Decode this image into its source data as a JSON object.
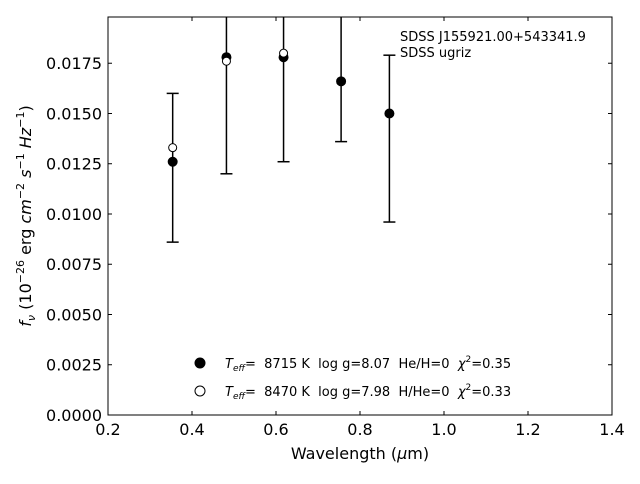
{
  "chart_data": {
    "type": "scatter",
    "xlabel": "Wavelength (μm)",
    "ylabel": "f_ν (10^-26 erg cm^-2 s^-1 Hz^-1)",
    "xlim": [
      0.2,
      1.4
    ],
    "ylim": [
      0.0,
      0.0198
    ],
    "xticks": [
      "0.2",
      "0.4",
      "0.6",
      "0.8",
      "1.0",
      "1.2",
      "1.4"
    ],
    "yticks": [
      "0.0000",
      "0.0025",
      "0.0050",
      "0.0075",
      "0.0100",
      "0.0125",
      "0.0150",
      "0.0175"
    ],
    "annotation": [
      "SDSS J155921.00+543341.9",
      "SDSS ugriz"
    ],
    "observed": {
      "x": [
        0.354,
        0.482,
        0.618,
        0.755,
        0.87
      ],
      "y": [
        0.0126,
        0.0178,
        0.0178,
        0.0166,
        0.015
      ],
      "yerr_low": [
        0.0086,
        0.012,
        0.0126,
        0.0136,
        0.0096
      ],
      "yerr_high": [
        0.016,
        0.02,
        0.02,
        0.02,
        0.0179
      ]
    },
    "series": [
      {
        "marker": "filled-circle",
        "x": [
          0.354,
          0.482,
          0.618,
          0.755,
          0.87
        ],
        "y": [
          0.0126,
          0.0178,
          0.0178,
          0.0166,
          0.015
        ]
      },
      {
        "marker": "open-circle",
        "x": [
          0.354,
          0.482,
          0.618,
          0.755,
          0.87
        ],
        "y": [
          0.0133,
          0.0176,
          0.018,
          0.0166,
          0.015
        ]
      }
    ],
    "legend": {
      "placement": "lower-center",
      "entries": [
        {
          "marker": "filled-circle",
          "teff_label": "T",
          "teff_sub": "eff",
          "text": "=  8715 K  log g=8.07  He/H=0  ",
          "chi_label": "χ",
          "chi_sup": "2",
          "chi_text": "=0.35"
        },
        {
          "marker": "open-circle",
          "teff_label": "T",
          "teff_sub": "eff",
          "text": "=  8470 K  log g=7.98  H/He=0  ",
          "chi_label": "χ",
          "chi_sup": "2",
          "chi_text": "=0.33"
        }
      ]
    },
    "grid": false
  }
}
